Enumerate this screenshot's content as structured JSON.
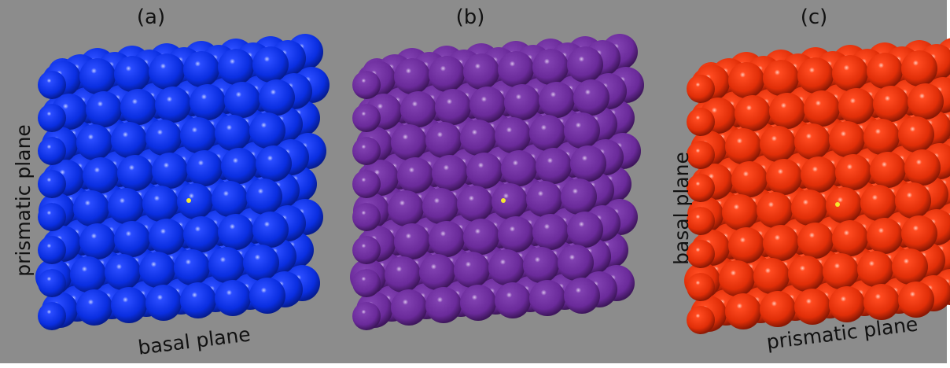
{
  "panels": [
    {
      "label": "(a)",
      "vertical_label": "prismatic plane",
      "bottom_label": "basal plane"
    },
    {
      "label": "(b)"
    },
    {
      "label": "(c)",
      "vertical_label": "basal plane",
      "bottom_label": "prismatic plane"
    }
  ]
}
